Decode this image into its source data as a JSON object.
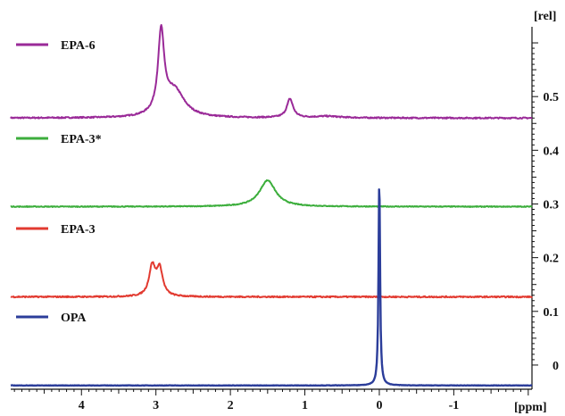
{
  "chart_data": {
    "type": "line",
    "title": "",
    "xlabel": "",
    "ylabel": "",
    "x_unit": "[ppm]",
    "y_unit": "[rel]",
    "xlim": [
      4.95,
      -2.05
    ],
    "ylim": [
      -0.045,
      0.62
    ],
    "x_reversed": true,
    "grid": false,
    "legend": "inline-left",
    "x_ticks": [
      "4",
      "3",
      "2",
      "1",
      "0",
      "-1"
    ],
    "y_ticks": [
      "0",
      "0.1",
      "0.2",
      "0.3",
      "0.4",
      "0.5"
    ],
    "series": [
      {
        "name": "EPA-6",
        "color": "#9a2a98",
        "baseline": 0.46,
        "peaks": [
          {
            "center": 2.93,
            "height": 0.15,
            "width": 0.05
          },
          {
            "center": 2.75,
            "height": 0.05,
            "width": 0.16
          },
          {
            "center": 1.2,
            "height": 0.035,
            "width": 0.05
          },
          {
            "center": 0.7,
            "height": 0.003,
            "width": 0.2
          }
        ],
        "noise": 0.0012
      },
      {
        "name": "EPA-3*",
        "color": "#3cae3c",
        "baseline": 0.295,
        "peaks": [
          {
            "center": 1.5,
            "height": 0.049,
            "width": 0.13
          }
        ],
        "noise": 0.0008
      },
      {
        "name": "EPA-3",
        "color": "#e23a30",
        "baseline": 0.127,
        "peaks": [
          {
            "center": 3.05,
            "height": 0.055,
            "width": 0.05
          },
          {
            "center": 2.95,
            "height": 0.05,
            "width": 0.05
          }
        ],
        "noise": 0.0012
      },
      {
        "name": "OPA",
        "color": "#2b3d9a",
        "baseline": -0.038,
        "peaks": [
          {
            "center": 0.0,
            "height": 0.393,
            "width": 0.012
          }
        ],
        "noise": 0.0003
      }
    ]
  }
}
